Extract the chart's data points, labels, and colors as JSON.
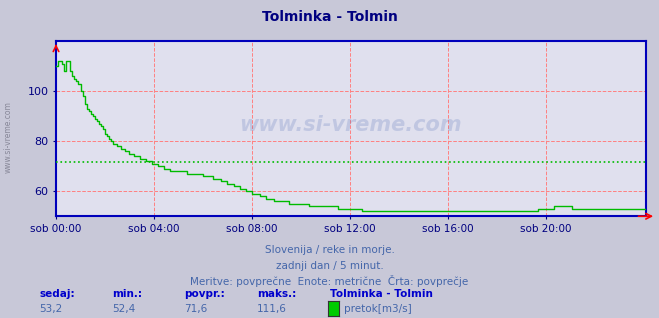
{
  "title": "Tolminka - Tolmin",
  "bg_color": "#c8c8d8",
  "plot_bg_color": "#e0e0ee",
  "grid_color_red": "#ff8080",
  "line_color": "#00bb00",
  "avg_line_color": "#00bb00",
  "avg_value": 71.6,
  "x_labels": [
    "sob 00:00",
    "sob 04:00",
    "sob 08:00",
    "sob 12:00",
    "sob 16:00",
    "sob 20:00"
  ],
  "y_ticks": [
    60,
    80,
    100
  ],
  "ylim": [
    50,
    120
  ],
  "title_color": "#000080",
  "tick_color": "#000080",
  "axis_color": "#0000bb",
  "watermark": "www.si-vreme.com",
  "sub_text1": "Slovenija / reke in morje.",
  "sub_text2": "zadnji dan / 5 minut.",
  "sub_text3": "Meritve: povprečne  Enote: metrične  Črta: povprečje",
  "sub_text_color": "#4466aa",
  "footer_label_color": "#0000cc",
  "footer_value_color": "#4466aa",
  "sedaj_label": "sedaj:",
  "min_label": "min.:",
  "povpr_label": "povpr.:",
  "maks_label": "maks.:",
  "legend_title": "Tolminka - Tolmin",
  "legend_series": "pretok[m3/s]",
  "legend_color": "#00cc00",
  "sedaj_val": "53,2",
  "min_val": "52,4",
  "povpr_val": "71,6",
  "maks_val": "111,6",
  "data_y": [
    110,
    112,
    112,
    111,
    108,
    112,
    112,
    108,
    106,
    105,
    104,
    103,
    100,
    98,
    95,
    93,
    92,
    91,
    90,
    89,
    88,
    87,
    86,
    85,
    83,
    82,
    81,
    80,
    79,
    79,
    78,
    78,
    77,
    77,
    76,
    76,
    75,
    75,
    74,
    74,
    74,
    73,
    73,
    73,
    72,
    72,
    72,
    71,
    71,
    71,
    70,
    70,
    70,
    69,
    69,
    69,
    68,
    68,
    68,
    68,
    68,
    68,
    68,
    68,
    67,
    67,
    67,
    67,
    67,
    67,
    67,
    67,
    66,
    66,
    66,
    66,
    66,
    65,
    65,
    65,
    65,
    64,
    64,
    64,
    63,
    63,
    63,
    62,
    62,
    62,
    61,
    61,
    61,
    60,
    60,
    60,
    59,
    59,
    59,
    59,
    58,
    58,
    58,
    57,
    57,
    57,
    57,
    56,
    56,
    56,
    56,
    56,
    56,
    56,
    55,
    55,
    55,
    55,
    55,
    55,
    55,
    55,
    55,
    55,
    54,
    54,
    54,
    54,
    54,
    54,
    54,
    54,
    54,
    54,
    54,
    54,
    54,
    54,
    53,
    53,
    53,
    53,
    53,
    53,
    53,
    53,
    53,
    53,
    53,
    53,
    52,
    52,
    52,
    52,
    52,
    52,
    52,
    52,
    52,
    52,
    52,
    52,
    52,
    52,
    52,
    52,
    52,
    52,
    52,
    52,
    52,
    52,
    52,
    52,
    52,
    52,
    52,
    52,
    52,
    52,
    52,
    52,
    52,
    52,
    52,
    52,
    52,
    52,
    52,
    52,
    52,
    52,
    52,
    52,
    52,
    52,
    52,
    52,
    52,
    52,
    52,
    52,
    52,
    52,
    52,
    52,
    52,
    52,
    52,
    52,
    52,
    52,
    52,
    52,
    52,
    52,
    52,
    52,
    52,
    52,
    52,
    52,
    52,
    52,
    52,
    52,
    52,
    52,
    52,
    52,
    52,
    52,
    52,
    52,
    52,
    52,
    53,
    53,
    53,
    53,
    53,
    53,
    53,
    53,
    54,
    54,
    54,
    54,
    54,
    54,
    54,
    54,
    54,
    53,
    53,
    53,
    53,
    53,
    53,
    53,
    53,
    53,
    53,
    53,
    53,
    53,
    53,
    53,
    53,
    53,
    53,
    53,
    53,
    53,
    53,
    53,
    53,
    53,
    53,
    53,
    53,
    53,
    53,
    53,
    53,
    53,
    53,
    53,
    53,
    53
  ]
}
